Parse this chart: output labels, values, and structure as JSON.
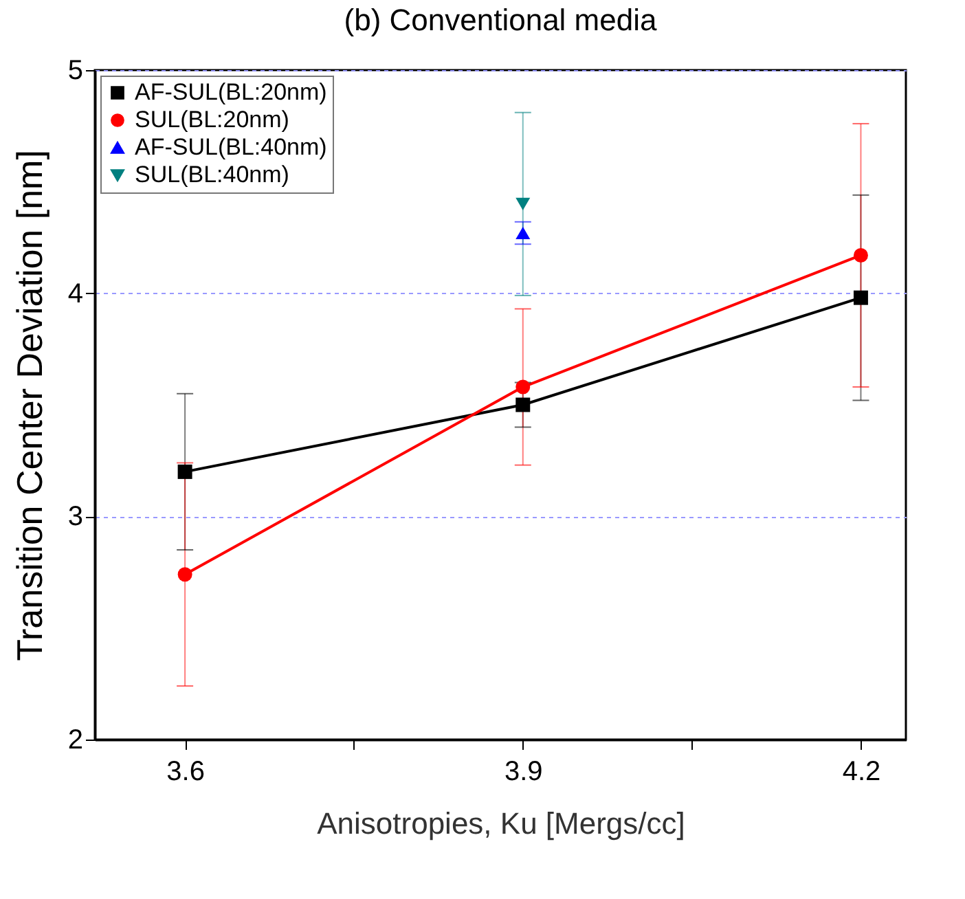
{
  "chart_data": {
    "type": "line",
    "title": "(b) Conventional media",
    "xlabel": "Anisotropies, Ku [Mergs/cc]",
    "ylabel": "Transition Center Deviation [nm]",
    "xlim": [
      3.52,
      4.24
    ],
    "xticks": [
      3.6,
      {
        "value": 3.75,
        "label": null
      },
      3.9,
      {
        "value": 4.05,
        "label": null
      },
      4.2
    ],
    "ylim": [
      2,
      5
    ],
    "yticks": [
      2,
      3,
      4,
      5
    ],
    "grid": "y",
    "legend": "top left",
    "line_style": "solid",
    "series": [
      {
        "name": "AF-SUL(BL:20nm)",
        "color": "#000000",
        "marker": "square",
        "x": [
          3.6,
          3.9,
          4.2
        ],
        "values": [
          3.2,
          3.5,
          3.98
        ],
        "errors": [
          0.35,
          0.1,
          0.46
        ]
      },
      {
        "name": "SUL(BL:20nm)",
        "color": "#ff0000",
        "marker": "circle",
        "x": [
          3.6,
          3.9,
          4.2
        ],
        "values": [
          2.74,
          3.58,
          4.17
        ],
        "errors": [
          0.5,
          0.35,
          0.59
        ]
      },
      {
        "name": "AF-SUL(BL:40nm)",
        "color": "#0000ff",
        "marker": "triangle",
        "x": [
          3.9
        ],
        "values": [
          4.27
        ],
        "errors": [
          0.05
        ]
      },
      {
        "name": "SUL(BL:40nm)",
        "color": "#008080",
        "marker": "triangle-down",
        "x": [
          3.9
        ],
        "values": [
          4.4
        ],
        "errors": [
          0.41
        ]
      }
    ]
  }
}
